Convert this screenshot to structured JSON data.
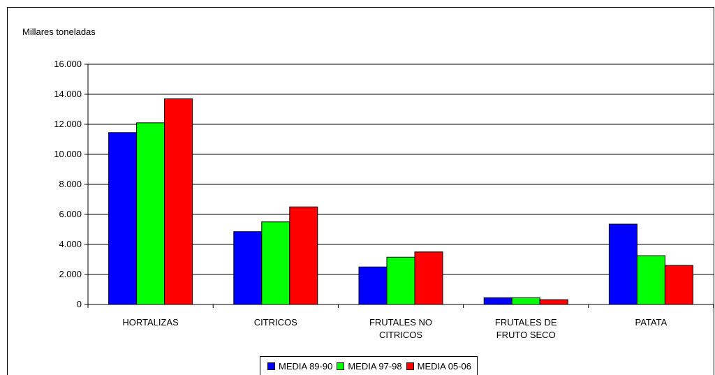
{
  "chart_data": {
    "type": "bar",
    "ylabel": "Millares toneladas",
    "ylim": [
      0,
      16000
    ],
    "yticks": [
      "0",
      "2.000",
      "4.000",
      "6.000",
      "8.000",
      "10.000",
      "12.000",
      "14.000",
      "16.000"
    ],
    "categories": [
      [
        "HORTALIZAS"
      ],
      [
        "CITRICOS"
      ],
      [
        "FRUTALES NO",
        "CITRICOS"
      ],
      [
        "FRUTALES DE",
        "FRUTO SECO"
      ],
      [
        "PATATA"
      ]
    ],
    "series": [
      {
        "name": "MEDIA 89-90",
        "color": "#0000ff",
        "values": [
          11450,
          4850,
          2500,
          450,
          5350
        ]
      },
      {
        "name": "MEDIA 97-98",
        "color": "#00ff00",
        "values": [
          12100,
          5500,
          3150,
          450,
          3250
        ]
      },
      {
        "name": "MEDIA 05-06",
        "color": "#ff0000",
        "values": [
          13700,
          6500,
          3500,
          320,
          2600
        ]
      }
    ],
    "grid": true,
    "legend_position": "bottom"
  }
}
